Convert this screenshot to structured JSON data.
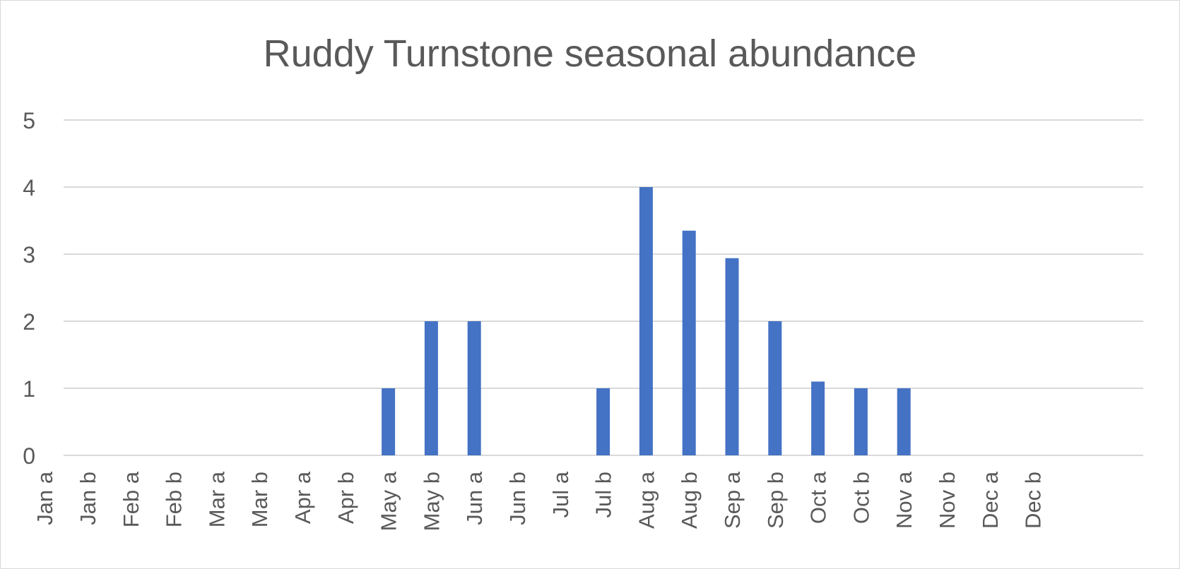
{
  "chart_data": {
    "type": "bar",
    "title": "Ruddy Turnstone seasonal abundance",
    "xlabel": "",
    "ylabel": "",
    "ylim": [
      0,
      5
    ],
    "yticks": [
      0,
      1,
      2,
      3,
      4,
      5
    ],
    "grid": true,
    "legend": "none",
    "bar_color": "#4472c4",
    "categories": [
      "Jan a",
      "Jan b",
      "Feb a",
      "Feb b",
      "Mar a",
      "Mar b",
      "Apr a",
      "Apr b",
      "May a",
      "May b",
      "Jun a",
      "Jun b",
      "Jul a",
      "Jul b",
      "Aug a",
      "Aug b",
      "Sep a",
      "Sep b",
      "Oct a",
      "Oct b",
      "Nov a",
      "Nov b",
      "Dec a",
      "Dec b"
    ],
    "values": [
      0,
      0,
      0,
      0,
      0,
      0,
      0,
      0,
      1,
      2,
      2,
      0,
      0,
      1,
      4,
      3.35,
      2.94,
      2,
      1.1,
      1,
      1,
      0,
      0,
      0
    ]
  }
}
